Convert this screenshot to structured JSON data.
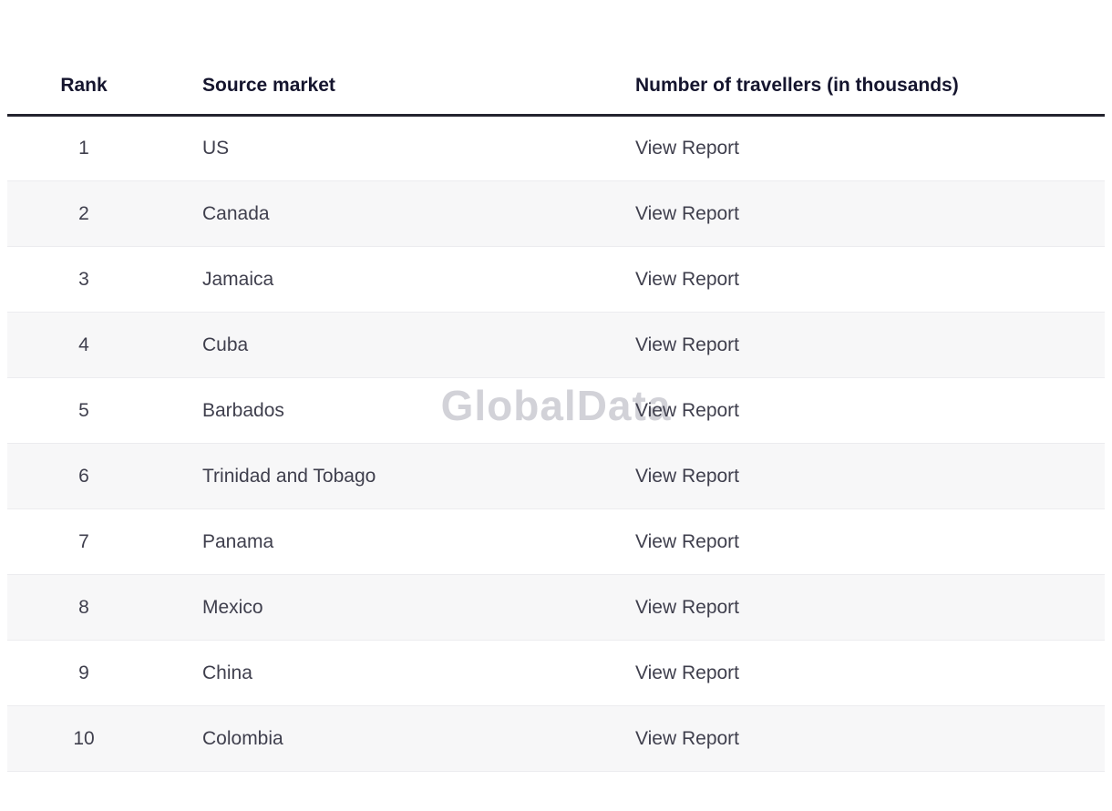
{
  "watermark": "GlobalData",
  "table": {
    "columns": [
      {
        "id": "rank",
        "label": "Rank"
      },
      {
        "id": "source_market",
        "label": "Source market"
      },
      {
        "id": "travellers",
        "label": "Number of travellers (in thousands)"
      }
    ],
    "rows": [
      {
        "rank": "1",
        "market": "US",
        "report": "View Report"
      },
      {
        "rank": "2",
        "market": "Canada",
        "report": "View Report"
      },
      {
        "rank": "3",
        "market": "Jamaica",
        "report": "View Report"
      },
      {
        "rank": "4",
        "market": "Cuba",
        "report": "View Report"
      },
      {
        "rank": "5",
        "market": "Barbados",
        "report": "View Report"
      },
      {
        "rank": "6",
        "market": "Trinidad and Tobago",
        "report": "View Report"
      },
      {
        "rank": "7",
        "market": "Panama",
        "report": "View Report"
      },
      {
        "rank": "8",
        "market": "Mexico",
        "report": "View Report"
      },
      {
        "rank": "9",
        "market": "China",
        "report": "View Report"
      },
      {
        "rank": "10",
        "market": "Colombia",
        "report": "View Report"
      }
    ]
  },
  "colors": {
    "header_text": "#15152e",
    "body_text": "#3f3f4d",
    "row_alt_bg": "#f7f7f8",
    "header_border": "#23232e",
    "row_border": "#ececef",
    "watermark": "#d2d2d8"
  }
}
